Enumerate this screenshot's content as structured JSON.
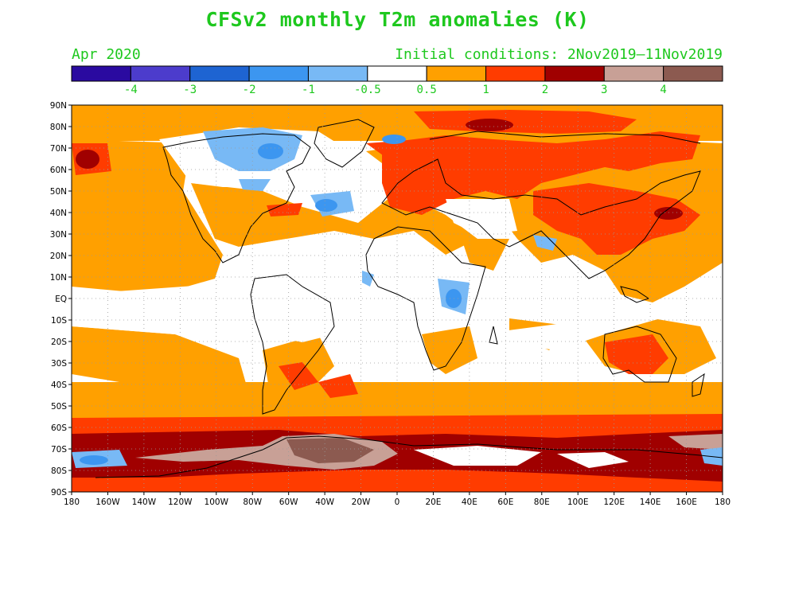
{
  "title": "CFSv2 monthly T2m anomalies (K)",
  "valid_month": "Apr 2020",
  "initial_conditions": "Initial conditions: 2Nov2019–11Nov2019",
  "colorbar": {
    "colors": [
      "#2a0aa0",
      "#4c3ccc",
      "#1e64d2",
      "#3c96f0",
      "#78b9f5",
      "#ffffff",
      "#ffa000",
      "#ff3c00",
      "#a00000",
      "#c8a096",
      "#8c5a50"
    ],
    "labels": [
      "-4",
      "-3",
      "-2",
      "-1",
      "-0.5",
      "0.5",
      "1",
      "2",
      "3",
      "4"
    ]
  },
  "lat_labels": [
    "90N",
    "80N",
    "70N",
    "60N",
    "50N",
    "40N",
    "30N",
    "20N",
    "10N",
    "EQ",
    "10S",
    "20S",
    "30S",
    "40S",
    "50S",
    "60S",
    "70S",
    "80S",
    "90S"
  ],
  "lon_labels": [
    "180",
    "160W",
    "140W",
    "120W",
    "100W",
    "80W",
    "60W",
    "40W",
    "20W",
    "0",
    "20E",
    "40E",
    "60E",
    "80E",
    "100E",
    "120E",
    "140E",
    "160E",
    "180"
  ],
  "palette": {
    "text_green": "#1ec81e",
    "orange": "#ffa000",
    "red": "#ff3c00",
    "dark_red": "#a00000",
    "pink_brown": "#c8a096",
    "brown": "#8c5a50",
    "light_blue": "#78b9f5",
    "mid_blue": "#3c96f0",
    "blue": "#1e64d2"
  }
}
